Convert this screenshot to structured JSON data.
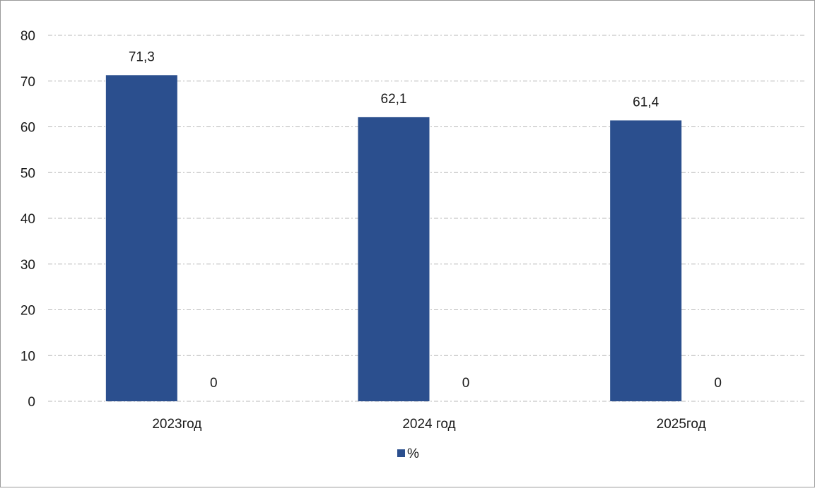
{
  "chart_data": {
    "type": "bar",
    "categories": [
      "2023год",
      "2024 год",
      "2025год"
    ],
    "series": [
      {
        "name": "%",
        "values": [
          71.3,
          62.1,
          61.4
        ],
        "labels": [
          "71,3",
          "62,1",
          "61,4"
        ],
        "color": "#2b4f8e"
      },
      {
        "name": "",
        "values": [
          0,
          0,
          0
        ],
        "labels": [
          "0",
          "0",
          "0"
        ],
        "color": "#a0a0a0"
      }
    ],
    "y_ticks": [
      0,
      10,
      20,
      30,
      40,
      50,
      60,
      70,
      80
    ],
    "ylim": [
      0,
      80
    ],
    "grid": true,
    "legend": {
      "placement": "bottom",
      "entries": [
        "%"
      ]
    },
    "title": "",
    "xlabel": "",
    "ylabel": ""
  }
}
